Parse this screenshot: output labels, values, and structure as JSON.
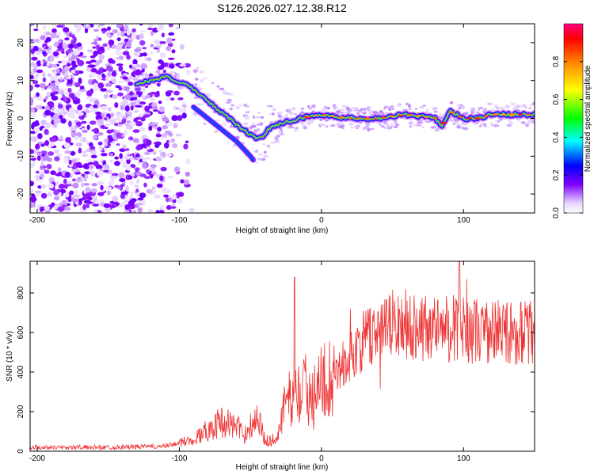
{
  "chart_data": [
    {
      "type": "heatmap",
      "title": "S126.2026.027.12.38.R12",
      "xlabel": "Height of straight line (km)",
      "ylabel": "Frequency (Hz)",
      "xlim": [
        -205,
        150
      ],
      "ylim": [
        -25,
        25
      ],
      "xticks": [
        -200,
        -100,
        0,
        100
      ],
      "yticks": [
        -20,
        -10,
        0,
        10,
        20
      ],
      "colorbar": {
        "label": "Normalized spectral amplitude",
        "range": [
          0,
          1
        ],
        "ticks": [
          0.0,
          0.2,
          0.4,
          0.6,
          0.8
        ],
        "tick_labels": [
          "0.0",
          "0.2",
          "0.4",
          "0.6",
          "0.8"
        ]
      },
      "ridge": {
        "description_x": [
          -130,
          -110,
          -95,
          -85,
          -75,
          -65,
          -55,
          -48,
          -42,
          -35,
          -25,
          -15,
          0,
          20,
          40,
          60,
          80,
          85,
          90,
          100,
          110,
          120,
          130,
          140,
          150
        ],
        "frequency_hz": [
          9,
          11,
          9,
          6,
          3,
          0,
          -3,
          -5,
          -5,
          -2,
          -1,
          0,
          1,
          0,
          0,
          1,
          0,
          -2,
          2,
          0,
          0,
          1,
          1,
          1,
          1
        ]
      }
    },
    {
      "type": "line",
      "xlabel": "Height of straight line (km)",
      "ylabel": "SNR (10 * v/v)",
      "xlim": [
        -205,
        150
      ],
      "ylim": [
        0,
        960
      ],
      "xticks": [
        -200,
        -100,
        0,
        100
      ],
      "yticks": [
        0,
        200,
        400,
        600,
        800
      ],
      "color": "#ee3333",
      "envelope_x": [
        -205,
        -150,
        -110,
        -90,
        -80,
        -70,
        -60,
        -55,
        -50,
        -45,
        -40,
        -35,
        -30,
        -25,
        -20,
        -15,
        -10,
        0,
        10,
        20,
        30,
        40,
        50,
        60,
        70,
        80,
        90,
        100,
        110,
        120,
        130,
        140,
        150
      ],
      "envelope_mean": [
        20,
        20,
        25,
        60,
        110,
        150,
        130,
        80,
        130,
        180,
        60,
        50,
        100,
        250,
        280,
        300,
        330,
        350,
        400,
        470,
        560,
        610,
        640,
        640,
        630,
        620,
        620,
        620,
        610,
        600,
        600,
        600,
        600
      ]
    }
  ]
}
